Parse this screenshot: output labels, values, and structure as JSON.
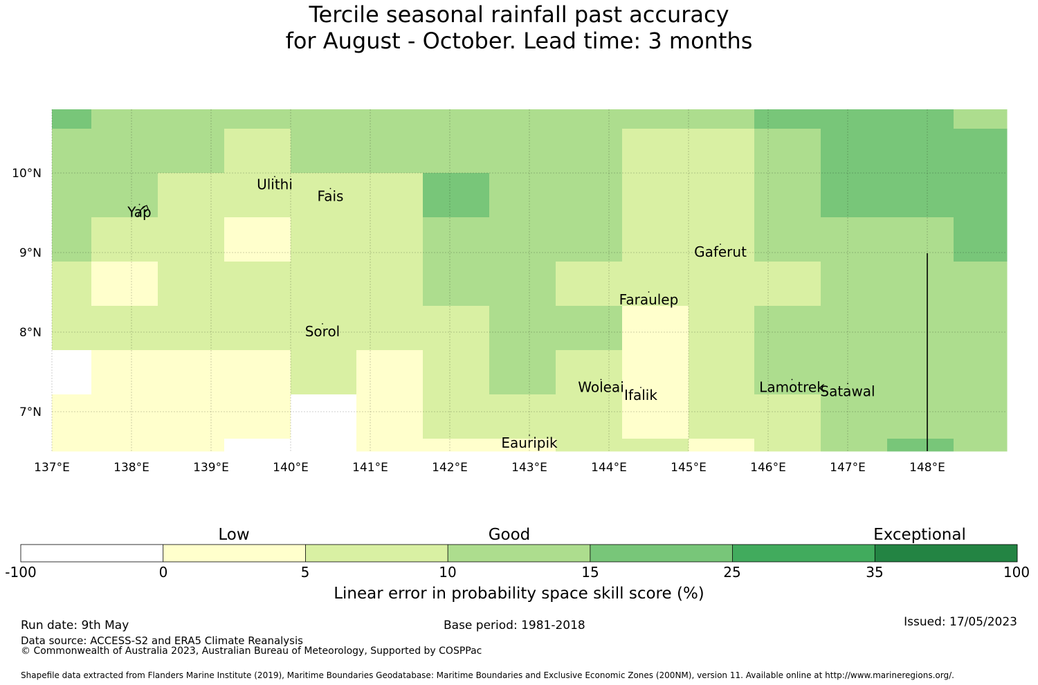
{
  "title": {
    "line1": "Tercile seasonal rainfall past accuracy",
    "line2": "for August - October. Lead time: 3 months"
  },
  "map": {
    "x_ticks": [
      "137°E",
      "138°E",
      "139°E",
      "140°E",
      "141°E",
      "142°E",
      "143°E",
      "144°E",
      "145°E",
      "146°E",
      "147°E",
      "148°E"
    ],
    "y_ticks": [
      "10°N",
      "9°N",
      "8°N",
      "7°N"
    ],
    "lon_range": [
      137,
      149
    ],
    "lat_range": [
      6.5,
      10.8
    ],
    "islands": [
      {
        "name": "Yap",
        "lon": 138.1,
        "lat": 9.5
      },
      {
        "name": "Ulithi",
        "lon": 139.8,
        "lat": 9.85
      },
      {
        "name": "Fais",
        "lon": 140.5,
        "lat": 9.7
      },
      {
        "name": "Gaferut",
        "lon": 145.4,
        "lat": 9.0
      },
      {
        "name": "Faraulep",
        "lon": 144.5,
        "lat": 8.4
      },
      {
        "name": "Sorol",
        "lon": 140.4,
        "lat": 8.0
      },
      {
        "name": "Woleai",
        "lon": 143.9,
        "lat": 7.3
      },
      {
        "name": "Ifalik",
        "lon": 144.4,
        "lat": 7.2
      },
      {
        "name": "Lamotrek",
        "lon": 146.3,
        "lat": 7.3
      },
      {
        "name": "Satawal",
        "lon": 147.0,
        "lat": 7.25
      },
      {
        "name": "Eauripik",
        "lon": 143.0,
        "lat": 6.6
      }
    ]
  },
  "colorbar": {
    "categories": [
      "Low",
      "Good",
      "Exceptional"
    ],
    "ticks": [
      "-100",
      "0",
      "5",
      "10",
      "15",
      "25",
      "35",
      "100"
    ],
    "colors": [
      "#ffffff",
      "#ffffcc",
      "#d9f0a3",
      "#addd8e",
      "#78c679",
      "#41ab5d",
      "#238443"
    ],
    "label": "Linear error in probability space skill score (%)"
  },
  "footer": {
    "run_date": "Run date: 9th May",
    "base_period": "Base period: 1981-2018",
    "issued": "Issued: 17/05/2023",
    "data_source": "Data source: ACCESS-S2 and ERA5 Climate Reanalysis",
    "copyright": "© Commonwealth of Australia 2023, Australian Bureau of Meteorology, Supported by COSPPac",
    "shapefile": "Shapefile data extracted from Flanders Marine Institute (2019), Maritime Boundaries Geodatabase: Maritime Boundaries and Exclusive Economic Zones (200NM), version 11. Available online at http://www.marineregions.org/."
  }
}
